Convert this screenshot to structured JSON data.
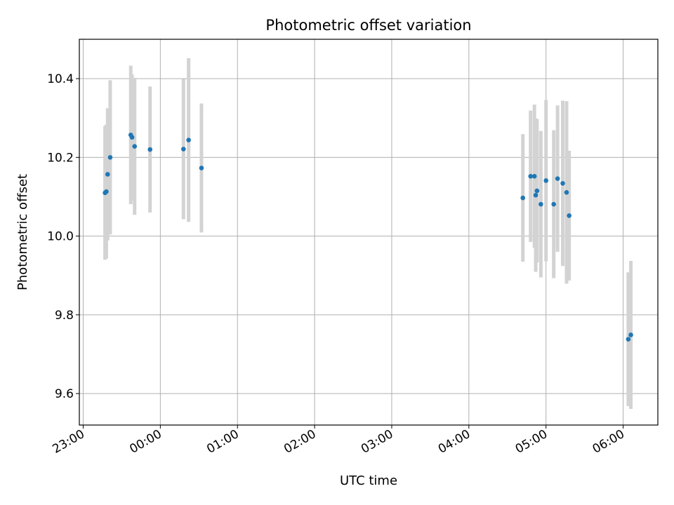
{
  "chart_data": {
    "type": "scatter",
    "title": "Photometric offset variation",
    "xlabel": "UTC time",
    "ylabel": "Photometric offset",
    "x_ticks": [
      "23:00",
      "00:00",
      "01:00",
      "02:00",
      "03:00",
      "04:00",
      "05:00",
      "06:00"
    ],
    "y_ticks": [
      "9.6",
      "9.8",
      "10.0",
      "10.2",
      "10.4"
    ],
    "xlim_hours": [
      -1.05,
      6.45
    ],
    "ylim": [
      9.52,
      10.5
    ],
    "grid": true,
    "colors": {
      "point": "#1f77b4",
      "errorbar": "#d3d3d3",
      "grid": "#b0b0b0"
    },
    "points": [
      {
        "t": "23:17",
        "y": 10.11,
        "err": 0.17
      },
      {
        "t": "23:18",
        "y": 10.113,
        "err": 0.17
      },
      {
        "t": "23:19",
        "y": 10.157,
        "err": 0.168
      },
      {
        "t": "23:21",
        "y": 10.2,
        "err": 0.196
      },
      {
        "t": "23:37",
        "y": 10.257,
        "err": 0.176
      },
      {
        "t": "23:38",
        "y": 10.251,
        "err": 0.16
      },
      {
        "t": "23:40",
        "y": 10.228,
        "err": 0.174
      },
      {
        "t": "23:52",
        "y": 10.22,
        "err": 0.16
      },
      {
        "t": "00:18",
        "y": 10.221,
        "err": 0.178
      },
      {
        "t": "00:22",
        "y": 10.244,
        "err": 0.208
      },
      {
        "t": "00:32",
        "y": 10.173,
        "err": 0.164
      },
      {
        "t": "04:42",
        "y": 10.097,
        "err": 0.162
      },
      {
        "t": "04:48",
        "y": 10.152,
        "err": 0.167
      },
      {
        "t": "04:51",
        "y": 10.152,
        "err": 0.182
      },
      {
        "t": "04:52",
        "y": 10.104,
        "err": 0.195
      },
      {
        "t": "04:53",
        "y": 10.115,
        "err": 0.182
      },
      {
        "t": "04:56",
        "y": 10.081,
        "err": 0.186
      },
      {
        "t": "05:00",
        "y": 10.141,
        "err": 0.205
      },
      {
        "t": "05:06",
        "y": 10.081,
        "err": 0.188
      },
      {
        "t": "05:09",
        "y": 10.146,
        "err": 0.186
      },
      {
        "t": "05:13",
        "y": 10.134,
        "err": 0.21
      },
      {
        "t": "05:16",
        "y": 10.111,
        "err": 0.232
      },
      {
        "t": "05:18",
        "y": 10.052,
        "err": 0.165
      },
      {
        "t": "06:04",
        "y": 9.738,
        "err": 0.17
      },
      {
        "t": "06:06",
        "y": 9.749,
        "err": 0.188
      }
    ]
  }
}
